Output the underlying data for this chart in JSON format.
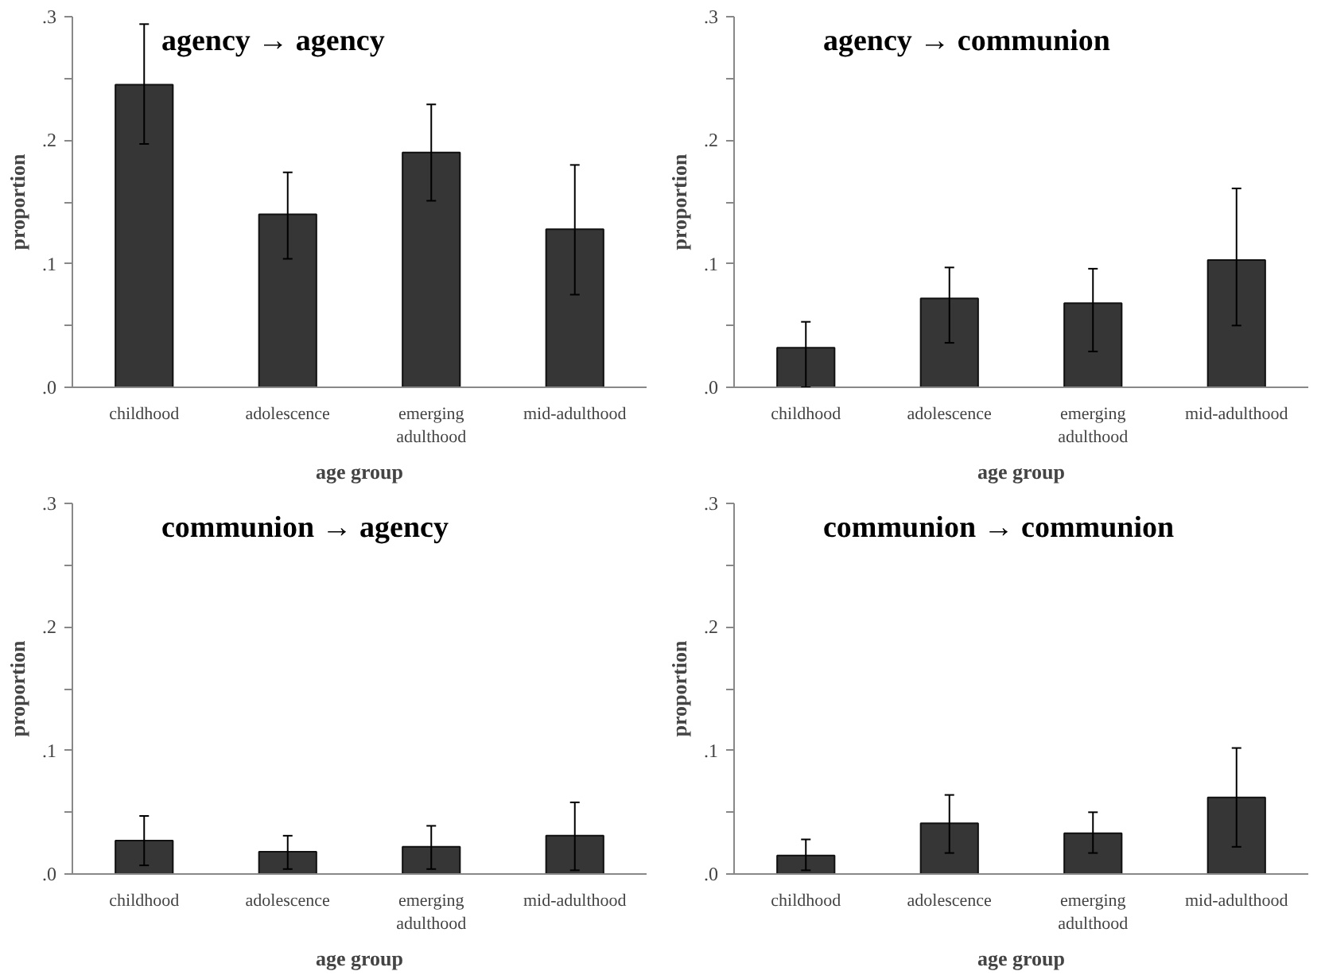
{
  "chart_data": [
    {
      "type": "bar",
      "title": "agency → agency",
      "xlabel": "age group",
      "ylabel": "proportion",
      "categories": [
        "childhood",
        "adolescence",
        "emerging adulthood",
        "mid-adulthood"
      ],
      "color": "#363636",
      "values": [
        0.245,
        0.14,
        0.19,
        0.128
      ],
      "errors": [
        [
          0.197,
          0.294
        ],
        [
          0.104,
          0.174
        ],
        [
          0.151,
          0.229
        ],
        [
          0.075,
          0.18
        ]
      ],
      "ylim": [
        0,
        0.3
      ],
      "yticks": [
        {
          "value": 0,
          "label": ".0"
        },
        {
          "value": 0.05,
          "label": null
        },
        {
          "value": 0.1,
          "label": ".1"
        },
        {
          "value": 0.15,
          "label": null
        },
        {
          "value": 0.2,
          "label": ".2"
        },
        {
          "value": 0.25,
          "label": null
        },
        {
          "value": 0.3,
          "label": ".3"
        }
      ],
      "grid": false
    },
    {
      "type": "bar",
      "title": "agency → communion",
      "xlabel": "age group",
      "ylabel": "proportion",
      "categories": [
        "childhood",
        "adolescence",
        "emerging adulthood",
        "mid-adulthood"
      ],
      "color": "#363636",
      "values": [
        0.032,
        0.072,
        0.068,
        0.103
      ],
      "errors": [
        [
          0,
          0.053
        ],
        [
          0.036,
          0.097
        ],
        [
          0.029,
          0.096
        ],
        [
          0.05,
          0.161
        ]
      ],
      "ylim": [
        0,
        0.3
      ],
      "yticks": [
        {
          "value": 0,
          "label": ".0"
        },
        {
          "value": 0.05,
          "label": null
        },
        {
          "value": 0.1,
          "label": ".1"
        },
        {
          "value": 0.15,
          "label": null
        },
        {
          "value": 0.2,
          "label": ".2"
        },
        {
          "value": 0.25,
          "label": null
        },
        {
          "value": 0.3,
          "label": ".3"
        }
      ],
      "grid": false
    },
    {
      "type": "bar",
      "title": "communion → agency",
      "xlabel": "age group",
      "ylabel": "proportion",
      "categories": [
        "childhood",
        "adolescence",
        "emerging adulthood",
        "mid-adulthood"
      ],
      "color": "#363636",
      "values": [
        0.027,
        0.018,
        0.022,
        0.031
      ],
      "errors": [
        [
          0.007,
          0.047
        ],
        [
          0.004,
          0.031
        ],
        [
          0.004,
          0.039
        ],
        [
          0.003,
          0.058
        ]
      ],
      "ylim": [
        0,
        0.3
      ],
      "yticks": [
        {
          "value": 0,
          "label": ".0"
        },
        {
          "value": 0.05,
          "label": null
        },
        {
          "value": 0.1,
          "label": ".1"
        },
        {
          "value": 0.15,
          "label": null
        },
        {
          "value": 0.2,
          "label": ".2"
        },
        {
          "value": 0.25,
          "label": null
        },
        {
          "value": 0.3,
          "label": ".3"
        }
      ],
      "grid": false
    },
    {
      "type": "bar",
      "title": "communion → communion",
      "xlabel": "age group",
      "ylabel": "proportion",
      "categories": [
        "childhood",
        "adolescence",
        "emerging adulthood",
        "mid-adulthood"
      ],
      "color": "#363636",
      "values": [
        0.015,
        0.041,
        0.033,
        0.062
      ],
      "errors": [
        [
          0.003,
          0.028
        ],
        [
          0.017,
          0.064
        ],
        [
          0.017,
          0.05
        ],
        [
          0.022,
          0.102
        ]
      ],
      "ylim": [
        0,
        0.3
      ],
      "yticks": [
        {
          "value": 0,
          "label": ".0"
        },
        {
          "value": 0.05,
          "label": null
        },
        {
          "value": 0.1,
          "label": ".1"
        },
        {
          "value": 0.15,
          "label": null
        },
        {
          "value": 0.2,
          "label": ".2"
        },
        {
          "value": 0.25,
          "label": null
        },
        {
          "value": 0.3,
          "label": ".3"
        }
      ],
      "grid": false
    }
  ]
}
